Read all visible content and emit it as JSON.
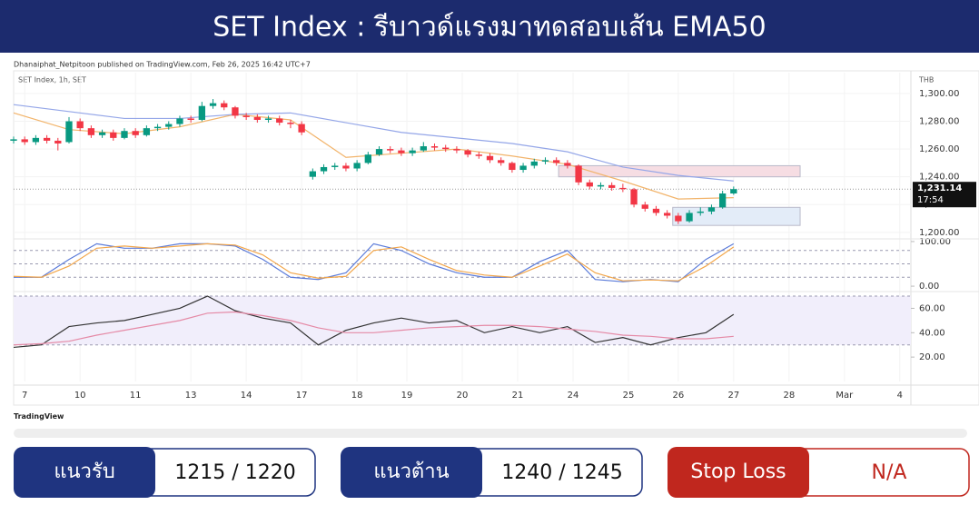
{
  "header": {
    "title": "SET Index : รีบาวด์แรงมาทดสอบเส้น EMA50"
  },
  "attribution": "Dhanaiphat_Netpitoon published on TradingView.com, Feb 26, 2025 16:42 UTC+7",
  "brand": "TradingView",
  "levels": [
    {
      "label": "แนวรับ",
      "value": "1215 / 1220"
    },
    {
      "label": "แนวต้าน",
      "value": "1240 / 1245"
    },
    {
      "label": "Stop Loss",
      "value": "N/A"
    }
  ],
  "chart_data": [
    {
      "type": "candlestick",
      "subtitle": "SET Index, 1h, SET",
      "currency": "THB",
      "up_color": "#089981",
      "down_color": "#f23645",
      "xlim": [
        0,
        81
      ],
      "ylim": [
        1194,
        1315
      ],
      "xticks": [
        {
          "value": 1,
          "label": "7"
        },
        {
          "value": 6,
          "label": "10"
        },
        {
          "value": 11,
          "label": "11"
        },
        {
          "value": 16,
          "label": "13"
        },
        {
          "value": 21,
          "label": "14"
        },
        {
          "value": 26,
          "label": "17"
        },
        {
          "value": 31,
          "label": "18"
        },
        {
          "value": 35.5,
          "label": "19"
        },
        {
          "value": 40.5,
          "label": "20"
        },
        {
          "value": 45.5,
          "label": "21"
        },
        {
          "value": 50.5,
          "label": "24"
        },
        {
          "value": 55.5,
          "label": "25"
        },
        {
          "value": 60,
          "label": "26"
        },
        {
          "value": 65,
          "label": "27"
        },
        {
          "value": 70,
          "label": "28"
        },
        {
          "value": 75,
          "label": "Mar"
        },
        {
          "value": 80,
          "label": "4"
        }
      ],
      "yticks": [
        {
          "value": 1200,
          "label": "1,200.00"
        },
        {
          "value": 1220,
          "label": "1,220.00"
        },
        {
          "value": 1240,
          "label": "1,240.00"
        },
        {
          "value": 1260,
          "label": "1,260.00"
        },
        {
          "value": 1280,
          "label": "1,280.00"
        },
        {
          "value": 1300,
          "label": "1,300.00"
        }
      ],
      "x": [
        0,
        1,
        2,
        3,
        4,
        5,
        6,
        7,
        8,
        9,
        10,
        11,
        12,
        13,
        14,
        15,
        16,
        17,
        18,
        19,
        20,
        21,
        22,
        23,
        24,
        25,
        26,
        27,
        28,
        29,
        30,
        31,
        32,
        33,
        34,
        35,
        36,
        37,
        38,
        39,
        40,
        41,
        42,
        43,
        44,
        45,
        46,
        47,
        48,
        49,
        50,
        51,
        52,
        53,
        54,
        55,
        56,
        57,
        58,
        59,
        60,
        61,
        62,
        63,
        64,
        65
      ],
      "open": [
        1266,
        1267,
        1265,
        1268,
        1266,
        1265,
        1280,
        1275,
        1270,
        1272,
        1268,
        1273,
        1270,
        1275,
        1276,
        1278,
        1282,
        1281,
        1291,
        1293,
        1290,
        1284,
        1283,
        1281,
        1282,
        1279,
        1278,
        1240,
        1244,
        1247,
        1248,
        1246,
        1250,
        1256,
        1260,
        1259,
        1257,
        1259,
        1262,
        1261,
        1260,
        1259,
        1256,
        1255,
        1252,
        1250,
        1245,
        1248,
        1251,
        1252,
        1250,
        1248,
        1236,
        1233,
        1234,
        1232,
        1231,
        1220,
        1217,
        1214,
        1212,
        1208,
        1214,
        1215,
        1218,
        1228
      ],
      "high": [
        1269,
        1269,
        1270,
        1270,
        1268,
        1283,
        1282,
        1277,
        1274,
        1274,
        1275,
        1275,
        1277,
        1278,
        1280,
        1284,
        1284,
        1294,
        1296,
        1295,
        1291,
        1286,
        1285,
        1284,
        1284,
        1281,
        1280,
        1246,
        1249,
        1250,
        1250,
        1252,
        1258,
        1262,
        1262,
        1261,
        1261,
        1265,
        1264,
        1263,
        1262,
        1260,
        1258,
        1257,
        1254,
        1251,
        1250,
        1253,
        1254,
        1254,
        1252,
        1249,
        1238,
        1236,
        1236,
        1235,
        1232,
        1222,
        1219,
        1216,
        1214,
        1216,
        1218,
        1220,
        1230,
        1233
      ],
      "low": [
        1264,
        1263,
        1263,
        1264,
        1259,
        1264,
        1273,
        1268,
        1268,
        1266,
        1267,
        1268,
        1269,
        1273,
        1274,
        1276,
        1279,
        1280,
        1289,
        1288,
        1282,
        1281,
        1279,
        1279,
        1277,
        1275,
        1270,
        1238,
        1242,
        1245,
        1244,
        1244,
        1249,
        1255,
        1257,
        1255,
        1255,
        1258,
        1259,
        1258,
        1257,
        1254,
        1253,
        1250,
        1248,
        1243,
        1243,
        1246,
        1249,
        1248,
        1246,
        1234,
        1231,
        1231,
        1230,
        1229,
        1218,
        1215,
        1212,
        1210,
        1206,
        1207,
        1212,
        1213,
        1217,
        1227
      ],
      "close": [
        1267,
        1265,
        1268,
        1266,
        1264,
        1280,
        1275,
        1270,
        1272,
        1268,
        1273,
        1270,
        1275,
        1276,
        1278,
        1282,
        1281,
        1291,
        1293,
        1290,
        1284,
        1283,
        1281,
        1282,
        1279,
        1278,
        1272,
        1244,
        1247,
        1248,
        1246,
        1250,
        1256,
        1260,
        1259,
        1257,
        1259,
        1262,
        1261,
        1260,
        1259,
        1256,
        1255,
        1252,
        1250,
        1245,
        1248,
        1251,
        1252,
        1250,
        1248,
        1236,
        1233,
        1234,
        1232,
        1231.14,
        1220,
        1217,
        1214,
        1212,
        1208,
        1214,
        1215,
        1218,
        1228,
        1231.14
      ],
      "series": [
        {
          "color": "#f2b46b",
          "x": [
            0,
            5,
            10,
            15,
            20,
            25,
            30,
            35,
            40,
            45,
            50,
            55,
            60,
            65
          ],
          "values": [
            1286,
            1274,
            1271,
            1276,
            1285,
            1281,
            1254,
            1257,
            1260,
            1255,
            1249,
            1237,
            1224,
            1225
          ]
        },
        {
          "color": "#94a6e8",
          "x": [
            0,
            5,
            10,
            15,
            20,
            25,
            30,
            35,
            40,
            45,
            50,
            55,
            60,
            65
          ],
          "values": [
            1292,
            1287,
            1282,
            1282,
            1285,
            1286,
            1279,
            1272,
            1268,
            1264,
            1258,
            1247,
            1241,
            1237
          ]
        }
      ],
      "zones": [
        {
          "color": "#f6dde3",
          "from": 1240,
          "to": 1248,
          "x": [
            49.2,
            71
          ]
        },
        {
          "color": "#e3ecf8",
          "from": 1205,
          "to": 1218,
          "x": [
            59.5,
            71
          ]
        }
      ],
      "last_price": {
        "value": 1231.14,
        "label": "1,231.14"
      },
      "countdown": "17:54"
    },
    {
      "type": "line",
      "xlim": [
        0,
        81
      ],
      "ylim": [
        -10,
        108
      ],
      "yticks": [
        {
          "value": 100,
          "label": "100.00"
        },
        {
          "value": 0,
          "label": "0.00"
        }
      ],
      "levels": [
        80,
        50,
        20
      ],
      "series": [
        {
          "color": "#5b7bd9",
          "x": [
            0,
            2.5,
            5,
            7.5,
            10,
            12.5,
            15,
            17.5,
            20,
            22.5,
            25,
            27.5,
            30,
            32.5,
            35,
            37.5,
            40,
            42.5,
            45,
            47.5,
            50,
            52.5,
            55,
            57.5,
            60,
            62.5,
            65
          ],
          "values": [
            20,
            20,
            60,
            95,
            85,
            85,
            95,
            95,
            90,
            60,
            20,
            15,
            30,
            95,
            80,
            50,
            30,
            20,
            20,
            55,
            80,
            15,
            10,
            15,
            10,
            60,
            95
          ]
        },
        {
          "color": "#f2a64a",
          "x": [
            0,
            2.5,
            5,
            7.5,
            10,
            12.5,
            15,
            17.5,
            20,
            22.5,
            25,
            27.5,
            30,
            32.5,
            35,
            37.5,
            40,
            42.5,
            45,
            47.5,
            50,
            52.5,
            55,
            57.5,
            60,
            62.5,
            65
          ],
          "values": [
            22,
            20,
            45,
            85,
            90,
            85,
            90,
            95,
            92,
            70,
            30,
            18,
            22,
            80,
            88,
            60,
            35,
            25,
            20,
            45,
            72,
            30,
            12,
            14,
            12,
            45,
            88
          ]
        }
      ]
    },
    {
      "type": "line",
      "xlim": [
        0,
        81
      ],
      "ylim": [
        0,
        73
      ],
      "yticks": [
        {
          "value": 60,
          "label": "60.00"
        },
        {
          "value": 40,
          "label": "40.00"
        },
        {
          "value": 20,
          "label": "20.00"
        }
      ],
      "band": [
        30,
        70
      ],
      "series": [
        {
          "color": "#333333",
          "x": [
            0,
            2.5,
            5,
            7.5,
            10,
            12.5,
            15,
            17.5,
            20,
            22.5,
            25,
            27.5,
            30,
            32.5,
            35,
            37.5,
            40,
            42.5,
            45,
            47.5,
            50,
            52.5,
            55,
            57.5,
            60,
            62.5,
            65
          ],
          "values": [
            28,
            30,
            45,
            48,
            50,
            55,
            60,
            70,
            58,
            52,
            48,
            30,
            42,
            48,
            52,
            48,
            50,
            40,
            45,
            40,
            45,
            32,
            36,
            30,
            36,
            40,
            55
          ]
        },
        {
          "color": "#e58aa6",
          "x": [
            0,
            2.5,
            5,
            7.5,
            10,
            12.5,
            15,
            17.5,
            20,
            22.5,
            25,
            27.5,
            30,
            32.5,
            35,
            37.5,
            40,
            42.5,
            45,
            47.5,
            50,
            52.5,
            55,
            57.5,
            60,
            62.5,
            65
          ],
          "values": [
            30,
            31,
            33,
            38,
            42,
            46,
            50,
            56,
            57,
            54,
            50,
            44,
            40,
            40,
            42,
            44,
            45,
            46,
            46,
            45,
            43,
            41,
            38,
            37,
            35,
            35,
            37
          ]
        }
      ]
    }
  ]
}
